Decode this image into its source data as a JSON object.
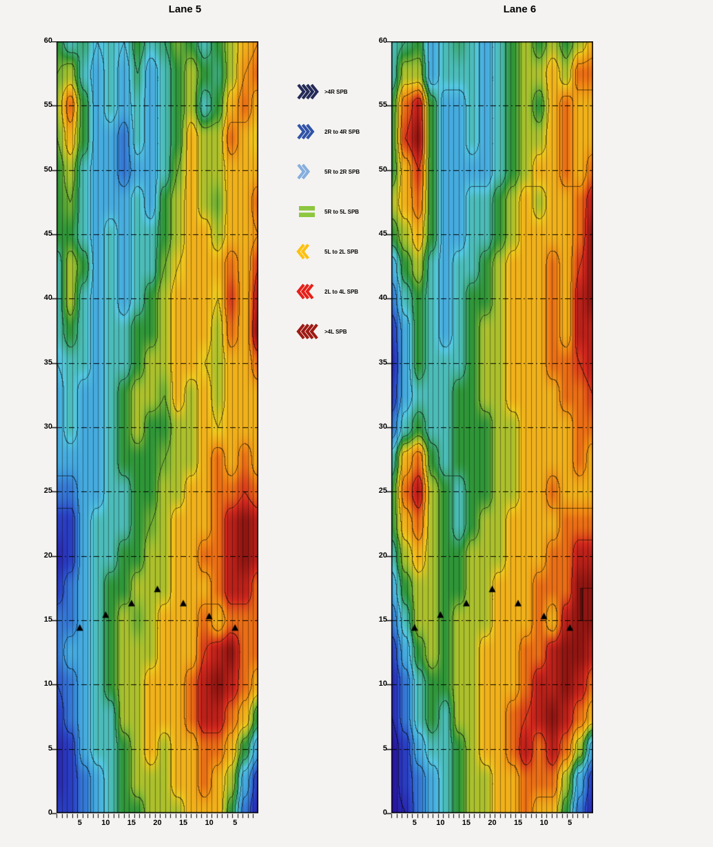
{
  "page": {
    "background": "#f4f3f1"
  },
  "legend": {
    "entries": [
      {
        "label": ">4R SPB",
        "icon": "chevrons-right",
        "count": 4,
        "color": "#232a58"
      },
      {
        "label": "2R to 4R SPB",
        "icon": "chevrons-right",
        "count": 3,
        "color": "#3053a8"
      },
      {
        "label": "5R to 2R SPB",
        "icon": "chevrons-right",
        "count": 2,
        "color": "#85aede"
      },
      {
        "label": "5R to 5L SPB",
        "icon": "bars",
        "count": 2,
        "color": "#8dc63f"
      },
      {
        "label": "5L to 2L SPB",
        "icon": "chevrons-left",
        "count": 2,
        "color": "#fdc00e"
      },
      {
        "label": "2L to 4L SPB",
        "icon": "chevrons-left",
        "count": 3,
        "color": "#e62019"
      },
      {
        "label": ">4L SPB",
        "icon": "chevrons-left",
        "count": 4,
        "color": "#9e1a14"
      }
    ]
  },
  "colormap": [
    {
      "t": 0.0,
      "c": "#2814a0"
    },
    {
      "t": 0.12,
      "c": "#2b46c8"
    },
    {
      "t": 0.25,
      "c": "#3c96dc"
    },
    {
      "t": 0.37,
      "c": "#55c8e0"
    },
    {
      "t": 0.5,
      "c": "#2f9638"
    },
    {
      "t": 0.58,
      "c": "#96be32"
    },
    {
      "t": 0.66,
      "c": "#f0c81e"
    },
    {
      "t": 0.78,
      "c": "#f08214"
    },
    {
      "t": 0.87,
      "c": "#d2281e"
    },
    {
      "t": 1.0,
      "c": "#640a0a"
    }
  ],
  "chart_data": [
    {
      "type": "heatmap",
      "title": "Lane 5",
      "n_boards": 39,
      "x_tick_positions": [
        5,
        10,
        15,
        20,
        25,
        30,
        35
      ],
      "x_tick_labels": [
        "5",
        "10",
        "15",
        "20",
        "15",
        "10",
        "5"
      ],
      "ylim": [
        0,
        60
      ],
      "y_ticks": [
        0,
        5,
        10,
        15,
        20,
        25,
        30,
        35,
        40,
        45,
        50,
        55,
        60
      ],
      "value_range": [
        -5,
        5
      ],
      "grid_y_order": "top(60) to bottom(0), step 2.5",
      "markers": [
        {
          "pos": 5,
          "y": 14.4
        },
        {
          "pos": 10,
          "y": 15.4
        },
        {
          "pos": 15,
          "y": 16.3
        },
        {
          "pos": 20,
          "y": 17.4
        },
        {
          "pos": 25,
          "y": 16.3
        },
        {
          "pos": 30,
          "y": 15.3
        },
        {
          "pos": 35,
          "y": 14.4
        }
      ],
      "grid": [
        [
          0,
          -1,
          -0.5,
          -1.5,
          -1,
          -1.5,
          0,
          -1,
          -0.5,
          0.5,
          0,
          -1,
          0,
          1,
          2,
          2.5
        ],
        [
          0.5,
          1,
          -1,
          -2,
          -1,
          -2,
          -0.5,
          -2,
          -1,
          0,
          1,
          0,
          -0.5,
          1,
          2.5,
          3
        ],
        [
          1,
          3,
          0,
          -2,
          -1,
          -2,
          -1,
          -2,
          -1,
          0,
          1,
          -1,
          0,
          2,
          3,
          2
        ],
        [
          0.5,
          2,
          0,
          -2,
          -2,
          -3,
          -1,
          -2,
          -1,
          0,
          2,
          1,
          1,
          3,
          2,
          1.5
        ],
        [
          0,
          1,
          -1,
          -2,
          -2,
          -3,
          -2,
          -2,
          -1,
          0.5,
          2,
          1,
          1,
          2,
          2,
          2
        ],
        [
          0,
          0.5,
          -1,
          -2,
          -2,
          -2,
          -1,
          -2,
          0,
          1,
          2,
          1,
          0.5,
          2,
          2,
          3
        ],
        [
          0,
          0,
          -1,
          -2,
          -1,
          -2,
          -1,
          -1,
          0,
          1,
          2,
          2,
          1,
          2,
          2,
          2.5
        ],
        [
          -1,
          1,
          0,
          -2,
          -1,
          -2,
          -1,
          -1,
          0.5,
          1.5,
          2,
          2,
          2,
          3,
          2,
          3.5
        ],
        [
          -1,
          1,
          -1,
          -2,
          -1,
          -2,
          -1,
          0,
          1,
          2,
          2,
          2,
          1.5,
          3.5,
          2,
          4
        ],
        [
          -1,
          0,
          -1,
          -2,
          -1,
          -1,
          0,
          0,
          1,
          2,
          2,
          2,
          1,
          3,
          2,
          4.5
        ],
        [
          -1.5,
          -1,
          -1,
          -2,
          -1,
          -1,
          0,
          1,
          1,
          2,
          2,
          1.5,
          1,
          2,
          2,
          3
        ],
        [
          -2,
          -1,
          -2,
          -2,
          -1,
          0,
          1,
          1,
          0.5,
          2,
          1,
          2,
          1,
          2,
          2,
          2
        ],
        [
          -2,
          -1,
          -2,
          -2,
          -1,
          0,
          1,
          0,
          0,
          1,
          1,
          2,
          1.5,
          2,
          2,
          2
        ],
        [
          -2,
          -2,
          -2,
          -2,
          -1,
          0,
          0,
          0,
          0.5,
          1,
          1,
          2,
          3,
          2,
          3,
          2
        ],
        [
          -3,
          -3,
          -2,
          -2,
          -1,
          -1,
          0,
          0,
          1,
          1,
          2,
          2,
          3,
          3,
          3.5,
          3
        ],
        [
          -4,
          -4,
          -2,
          -1,
          -1,
          -1,
          0,
          0.5,
          1,
          2,
          2,
          2,
          3,
          4,
          4.5,
          4
        ],
        [
          -4.5,
          -4,
          -2,
          -1,
          -1,
          0,
          0,
          1,
          1,
          2,
          2,
          3,
          3,
          4,
          4.5,
          4
        ],
        [
          -4,
          -3,
          -2,
          -1,
          0,
          0,
          1,
          1,
          1,
          2,
          2,
          2,
          3,
          4,
          4,
          3
        ],
        [
          -3,
          -3,
          -2,
          -1,
          0,
          1,
          0.5,
          1,
          2,
          2,
          2,
          3,
          2,
          3,
          3,
          3
        ],
        [
          -3,
          -2,
          -2,
          -1,
          0,
          1,
          1,
          1,
          2,
          2,
          2,
          3.5,
          4,
          4.5,
          3,
          3
        ],
        [
          -3.5,
          -3,
          -2,
          -1,
          0,
          1,
          1,
          2,
          2,
          2,
          3,
          4,
          4.5,
          4,
          3,
          2
        ],
        [
          -4,
          -3,
          -2,
          -1,
          -1,
          1,
          1,
          2,
          2,
          2,
          3,
          4,
          4,
          3,
          2,
          0
        ],
        [
          -4.5,
          -4,
          -2,
          -1,
          -1,
          0,
          1,
          2,
          1,
          2,
          2,
          3,
          3,
          2,
          0,
          -2
        ],
        [
          -4.5,
          -4,
          -3,
          -2,
          -1,
          0,
          1,
          1,
          1,
          2,
          2,
          3,
          2,
          1,
          -2,
          -4
        ],
        [
          -4,
          -4,
          -3,
          -2,
          -1,
          0,
          0,
          1,
          1,
          1,
          2,
          2,
          2,
          0,
          -3,
          -4.5
        ]
      ]
    },
    {
      "type": "heatmap",
      "title": "Lane 6",
      "n_boards": 39,
      "x_tick_positions": [
        5,
        10,
        15,
        20,
        25,
        30,
        35
      ],
      "x_tick_labels": [
        "5",
        "10",
        "15",
        "20",
        "15",
        "10",
        "5"
      ],
      "ylim": [
        0,
        60
      ],
      "y_ticks": [
        0,
        5,
        10,
        15,
        20,
        25,
        30,
        35,
        40,
        45,
        50,
        55,
        60
      ],
      "value_range": [
        -5,
        5
      ],
      "grid_y_order": "top(60) to bottom(0), step 2.5",
      "markers": [
        {
          "pos": 5,
          "y": 14.4
        },
        {
          "pos": 10,
          "y": 15.4
        },
        {
          "pos": 15,
          "y": 16.3
        },
        {
          "pos": 20,
          "y": 17.4
        },
        {
          "pos": 25,
          "y": 16.3
        },
        {
          "pos": 30,
          "y": 15.3
        },
        {
          "pos": 35,
          "y": 14.4
        }
      ],
      "grid": [
        [
          -1,
          -0.5,
          0,
          -2,
          -1,
          -0.5,
          -1,
          -2,
          -1,
          0,
          1,
          0,
          1,
          0,
          1,
          2
        ],
        [
          -1,
          1,
          1,
          -2,
          -1,
          -1,
          -1,
          -2,
          -1,
          0,
          1,
          1,
          2,
          1,
          3,
          3
        ],
        [
          0,
          3,
          4,
          0,
          -2,
          -2,
          -1,
          -2,
          -1,
          0,
          1,
          0,
          2,
          3,
          2,
          2
        ],
        [
          0,
          3.5,
          4.5,
          0,
          -2,
          -2,
          -1,
          -2,
          -1,
          0,
          1,
          1,
          2,
          3,
          2,
          2
        ],
        [
          0,
          2,
          3.5,
          0,
          -2,
          -2,
          -2,
          -2,
          -1,
          0,
          1,
          2,
          2,
          3,
          2,
          3
        ],
        [
          1,
          2,
          3,
          0,
          -2,
          -2,
          -1,
          -1,
          0,
          1,
          2,
          1,
          2,
          2,
          3,
          4
        ],
        [
          0,
          1,
          2,
          0,
          -2,
          -2,
          -1,
          -1,
          0,
          1,
          2,
          2,
          2,
          2,
          3,
          4.5
        ],
        [
          -2,
          0,
          1,
          -1,
          -2,
          -1,
          -1,
          0,
          1,
          2,
          2,
          2,
          3,
          2,
          3.5,
          4.5
        ],
        [
          -3,
          -1,
          0,
          -1,
          -2,
          -1,
          0,
          0,
          1,
          2,
          2,
          2,
          3,
          2,
          4,
          4.5
        ],
        [
          -4,
          -2,
          0,
          -1,
          -2,
          -1,
          0,
          1,
          1,
          2,
          2,
          2,
          3,
          2,
          4,
          4
        ],
        [
          -4.5,
          -2,
          0,
          -1,
          -1,
          -1,
          0,
          1,
          1,
          2,
          2,
          2,
          3,
          3,
          3.5,
          4
        ],
        [
          -4,
          -2,
          -1,
          -1,
          -1,
          0,
          0,
          1,
          1,
          2,
          2,
          2,
          2,
          3,
          3,
          3.5
        ],
        [
          -3,
          -1,
          0,
          -1,
          -1,
          0,
          0,
          0,
          1,
          1,
          2,
          2,
          2,
          2,
          3,
          3
        ],
        [
          -1,
          2,
          3,
          0,
          -1,
          0,
          0,
          0,
          1,
          1,
          2,
          2,
          2,
          2,
          3,
          2
        ],
        [
          0,
          3,
          4,
          1,
          0,
          -1,
          0,
          0,
          1,
          1,
          2,
          2,
          3,
          2,
          2,
          2
        ],
        [
          0,
          2,
          3,
          1,
          0,
          -1,
          0,
          1,
          1,
          2,
          2,
          2,
          2,
          3,
          3,
          3
        ],
        [
          -1,
          1,
          2,
          1,
          0,
          0,
          1,
          1,
          1,
          2,
          2,
          2,
          3,
          3,
          4,
          4
        ],
        [
          -2,
          0,
          1,
          1,
          0,
          0,
          1,
          1,
          2,
          2,
          2,
          3,
          3,
          3,
          4.5,
          4.5
        ],
        [
          -3,
          -1,
          1,
          1,
          0,
          1,
          1,
          1,
          2,
          2,
          2,
          3,
          2,
          4,
          4.5,
          4.5
        ],
        [
          -4,
          -2,
          0,
          1,
          0,
          1,
          1,
          2,
          2,
          2,
          3,
          3,
          4,
          4.5,
          4.5,
          4
        ],
        [
          -4.5,
          -3,
          -1,
          0,
          0,
          1,
          1,
          2,
          2,
          2,
          3,
          4,
          4,
          4.5,
          4,
          3
        ],
        [
          -4.5,
          -3,
          -1,
          0,
          -1,
          1,
          1,
          2,
          2,
          3,
          3.5,
          4,
          4.5,
          4,
          3,
          2
        ],
        [
          -5,
          -4,
          -2,
          -1,
          -1,
          0,
          1,
          2,
          2,
          3,
          4,
          3,
          4,
          3,
          1,
          -2
        ],
        [
          -5,
          -4,
          -3,
          -2,
          -1,
          0,
          1,
          1,
          2,
          2,
          3,
          3,
          3,
          1,
          -2,
          -4
        ],
        [
          -5,
          -4.5,
          -3,
          -2,
          -1,
          0,
          1,
          1,
          2,
          2,
          3,
          2,
          2,
          0,
          -3,
          -4.5
        ]
      ]
    }
  ]
}
